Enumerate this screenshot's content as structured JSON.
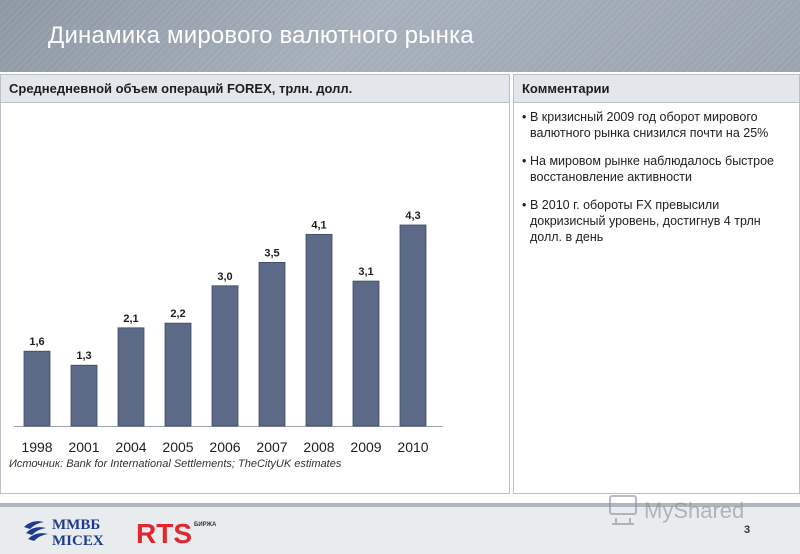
{
  "header": {
    "title": "Динамика мирового валютного рынка"
  },
  "left_panel": {
    "heading": "Среднедневной объем операций FOREX, трлн. долл.",
    "source": "Источник: Bank for International Settlements; TheCityUK estimates"
  },
  "right_panel": {
    "heading": "Комментарии",
    "items": [
      "В кризисный 2009 год оборот мирового валютного рынка снизился почти на 25%",
      "На мировом рынке наблюдалось быстрое восстановление активности",
      "В 2010 г. обороты FX превысили докризисный уровень, достигнув 4 трлн долл. в день"
    ]
  },
  "chart_data": {
    "type": "bar",
    "title": "Среднедневной объем операций FOREX, трлн. долл.",
    "categories": [
      "1998",
      "2001",
      "2004",
      "2005",
      "2006",
      "2007",
      "2008",
      "2009",
      "2010"
    ],
    "values": [
      1.6,
      1.3,
      2.1,
      2.2,
      3.0,
      3.5,
      4.1,
      3.1,
      4.3
    ],
    "value_labels": [
      "1,6",
      "1,3",
      "2,1",
      "2,2",
      "3,0",
      "3,5",
      "4,1",
      "3,1",
      "4,3"
    ],
    "ylim": [
      0,
      4.3
    ],
    "grid": false,
    "bar_color": "#5c6a88"
  },
  "footer": {
    "logo_mmvb": "ММВБ МІСЕХ",
    "logo_rts": "RTS",
    "logo_rts_sub": "БИРЖА",
    "page_number": "3",
    "watermark": "MyShared"
  },
  "colors": {
    "title_bg": "#9aa4b0",
    "panel_head_bg": "#e3e7ec",
    "rts_red": "#e3262c",
    "mmvb_blue": "#1f3b8c"
  }
}
